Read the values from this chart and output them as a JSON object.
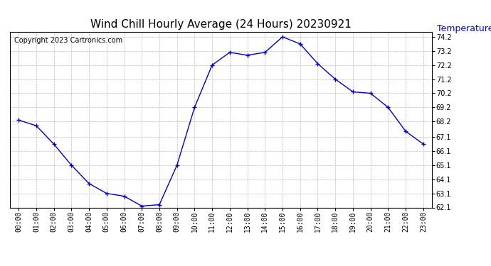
{
  "title": "Wind Chill Hourly Average (24 Hours) 20230921",
  "ylabel": "Temperature (°F)",
  "copyright_text": "Copyright 2023 Cartronics.com",
  "hours": [
    0,
    1,
    2,
    3,
    4,
    5,
    6,
    7,
    8,
    9,
    10,
    11,
    12,
    13,
    14,
    15,
    16,
    17,
    18,
    19,
    20,
    21,
    22,
    23
  ],
  "x_labels": [
    "00:00",
    "01:00",
    "02:00",
    "03:00",
    "04:00",
    "05:00",
    "06:00",
    "07:00",
    "08:00",
    "09:00",
    "10:00",
    "11:00",
    "12:00",
    "13:00",
    "14:00",
    "15:00",
    "16:00",
    "17:00",
    "18:00",
    "19:00",
    "20:00",
    "21:00",
    "22:00",
    "23:00"
  ],
  "values": [
    68.3,
    67.9,
    66.6,
    65.1,
    63.8,
    63.1,
    62.9,
    62.2,
    62.3,
    65.1,
    69.2,
    72.2,
    73.1,
    72.9,
    73.1,
    74.2,
    73.7,
    72.3,
    71.2,
    70.3,
    70.2,
    69.2,
    67.5,
    66.6
  ],
  "ylim_min": 62.1,
  "ylim_max": 74.55,
  "yticks": [
    62.1,
    63.1,
    64.1,
    65.1,
    66.1,
    67.1,
    68.2,
    69.2,
    70.2,
    71.2,
    72.2,
    73.2,
    74.2
  ],
  "line_color": "#0000cc",
  "marker_style": "+",
  "marker_color": "#0000cc",
  "grid_color": "#bbbbbb",
  "background_color": "#ffffff",
  "title_fontsize": 11,
  "ylabel_fontsize": 9,
  "ylabel_color": "#0000ff",
  "copyright_fontsize": 7,
  "copyright_color": "#000000",
  "tick_fontsize": 7
}
